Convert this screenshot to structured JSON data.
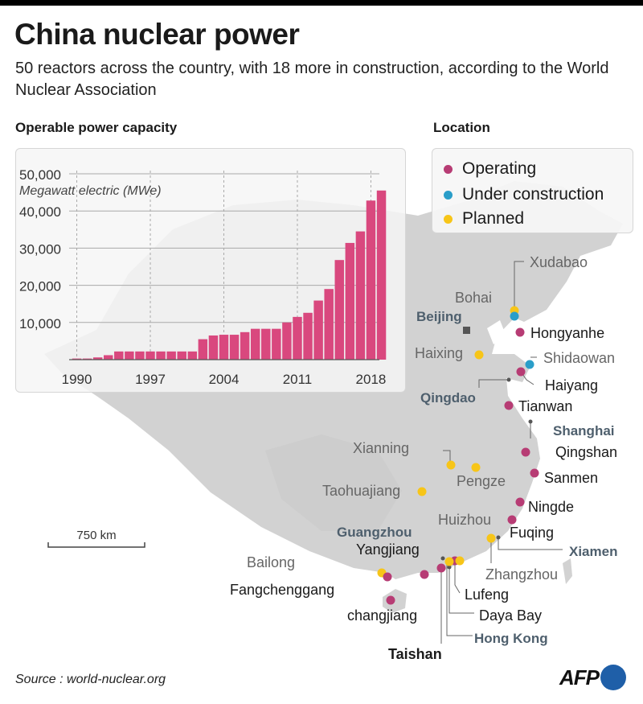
{
  "header": {
    "title": "China nuclear power",
    "subtitle": "50 reactors across the country, with 18 more in construction, according to the World Nuclear Association"
  },
  "colors": {
    "operating": "#b73c74",
    "under_construction": "#2a9ec9",
    "planned": "#f7c518",
    "bar": "#d9487e",
    "land": "#d2d2d2",
    "city_label": "#4e5f6d"
  },
  "chart_data": {
    "type": "bar",
    "title": "Operable power capacity",
    "ylabel": "Megawatt electric (MWe)",
    "xlabel": "",
    "x": [
      1990,
      1991,
      1992,
      1993,
      1994,
      1995,
      1996,
      1997,
      1998,
      1999,
      2000,
      2001,
      2002,
      2003,
      2004,
      2005,
      2006,
      2007,
      2008,
      2009,
      2010,
      2011,
      2012,
      2013,
      2014,
      2015,
      2016,
      2017,
      2018,
      2019
    ],
    "values": [
      300,
      300,
      600,
      1200,
      2200,
      2200,
      2200,
      2200,
      2200,
      2200,
      2200,
      2200,
      5500,
      6500,
      6700,
      6700,
      7400,
      8300,
      8300,
      8300,
      10000,
      11500,
      12600,
      15900,
      19000,
      26800,
      31400,
      34500,
      42800,
      45500
    ],
    "ylim": [
      0,
      50000
    ],
    "y_ticks": [
      "10,000",
      "20,000",
      "30,000",
      "40,000",
      "50,000"
    ],
    "x_ticks": [
      "1990",
      "1997",
      "2004",
      "2011",
      "2018"
    ],
    "grid": true
  },
  "legend": {
    "title": "Location",
    "items": [
      {
        "label": "Operating",
        "color": "#b73c74"
      },
      {
        "label": "Under construction",
        "color": "#2a9ec9"
      },
      {
        "label": "Planned",
        "color": "#f7c518"
      }
    ]
  },
  "map": {
    "scale_label": "750 km",
    "cities": {
      "beijing": "Beijing",
      "qingdao": "Qingdao",
      "shanghai": "Shanghai",
      "guangzhou": "Guangzhou",
      "xiamen": "Xiamen",
      "hongkong": "Hong Kong"
    },
    "sites": {
      "xudabao": "Xudabao",
      "bohai": "Bohai",
      "hongyanhe": "Hongyanhe",
      "haixing": "Haixing",
      "shidaowan": "Shidaowan",
      "haiyang": "Haiyang",
      "tianwan": "Tianwan",
      "qingshan": "Qingshan",
      "xianning": "Xianning",
      "pengze": "Pengze",
      "sanmen": "Sanmen",
      "taohuajiang": "Taohuajiang",
      "ningde": "Ningde",
      "huizhou": "Huizhou",
      "fuqing": "Fuqing",
      "yangjiang": "Yangjiang",
      "bailong": "Bailong",
      "fangchenggang": "Fangchenggang",
      "zhangzhou": "Zhangzhou",
      "lufeng": "Lufeng",
      "changjiang": "changjiang",
      "dayabay": "Daya Bay",
      "taishan": "Taishan"
    }
  },
  "footer": {
    "source": "Source : world-nuclear.org",
    "logo": "AFP"
  }
}
